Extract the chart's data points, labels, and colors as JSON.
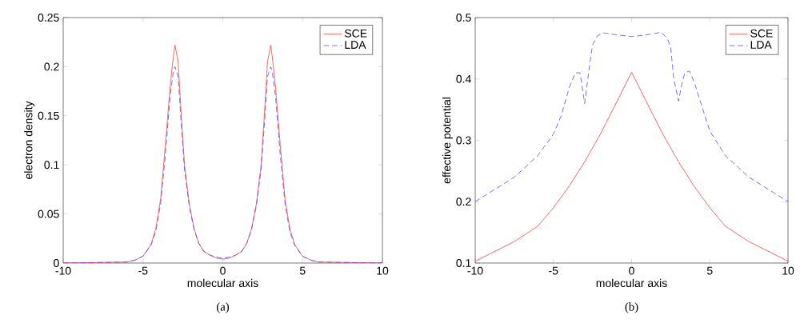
{
  "chart_data": [
    {
      "type": "line",
      "xlabel": "molecular axis",
      "ylabel": "electron density",
      "annotations": [
        "(a)"
      ],
      "xlim": [
        -10,
        10
      ],
      "ylim": [
        0,
        0.25
      ],
      "xticks": [
        -10,
        -5,
        0,
        5,
        10
      ],
      "yticks": [
        0,
        0.05,
        0.1,
        0.15,
        0.2,
        0.25
      ],
      "grid": false,
      "legend": "top right",
      "marker": "none",
      "series": [
        {
          "name": "SCE",
          "color": "#ff4040",
          "line_style": "solid",
          "x": [
            -10,
            -6,
            -5.5,
            -5,
            -4.5,
            -4.2,
            -3.9,
            -3.6,
            -3.3,
            -3.1,
            -3,
            -2.8,
            -2.6,
            -2.4,
            -2.1,
            -1.8,
            -1.5,
            -1.2,
            -0.8,
            -0.4,
            0,
            0.4,
            0.8,
            1.2,
            1.5,
            1.8,
            2.1,
            2.4,
            2.6,
            2.8,
            3,
            3.1,
            3.3,
            3.6,
            3.9,
            4.2,
            4.5,
            5,
            5.5,
            6,
            10
          ],
          "values": [
            0,
            0.001,
            0.003,
            0.007,
            0.019,
            0.035,
            0.065,
            0.12,
            0.18,
            0.21,
            0.222,
            0.205,
            0.15,
            0.1,
            0.06,
            0.035,
            0.02,
            0.012,
            0.008,
            0.005,
            0.004,
            0.005,
            0.008,
            0.012,
            0.02,
            0.035,
            0.06,
            0.1,
            0.15,
            0.205,
            0.222,
            0.21,
            0.18,
            0.12,
            0.065,
            0.035,
            0.019,
            0.007,
            0.003,
            0.001,
            0
          ]
        },
        {
          "name": "LDA",
          "color": "#4d4dff",
          "line_style": "dashed",
          "x": [
            -10,
            -6,
            -5.5,
            -5,
            -4.5,
            -4.2,
            -3.9,
            -3.6,
            -3.3,
            -3.1,
            -3,
            -2.8,
            -2.6,
            -2.4,
            -2.1,
            -1.8,
            -1.5,
            -1.2,
            -0.8,
            -0.4,
            0,
            0.4,
            0.8,
            1.2,
            1.5,
            1.8,
            2.1,
            2.4,
            2.6,
            2.8,
            3,
            3.1,
            3.3,
            3.6,
            3.9,
            4.2,
            4.5,
            5,
            5.5,
            6,
            10
          ],
          "values": [
            0,
            0.001,
            0.003,
            0.007,
            0.018,
            0.032,
            0.06,
            0.11,
            0.17,
            0.195,
            0.2,
            0.19,
            0.14,
            0.095,
            0.058,
            0.034,
            0.02,
            0.012,
            0.008,
            0.006,
            0.005,
            0.006,
            0.008,
            0.012,
            0.02,
            0.034,
            0.058,
            0.095,
            0.14,
            0.19,
            0.2,
            0.195,
            0.17,
            0.11,
            0.06,
            0.032,
            0.018,
            0.007,
            0.003,
            0.001,
            0
          ]
        }
      ]
    },
    {
      "type": "line",
      "xlabel": "molecular axis",
      "ylabel": "effective potential",
      "annotations": [
        "(b)"
      ],
      "xlim": [
        -10,
        10
      ],
      "ylim": [
        0.1,
        0.5
      ],
      "xticks": [
        -10,
        -5,
        0,
        5,
        10
      ],
      "yticks": [
        0.1,
        0.2,
        0.3,
        0.4,
        0.5
      ],
      "grid": false,
      "legend": "top right",
      "marker": "none",
      "series": [
        {
          "name": "SCE",
          "color": "#ff4040",
          "line_style": "solid",
          "x": [
            -10,
            -7.5,
            -6,
            -5,
            -4,
            -3,
            -2,
            -1,
            0,
            1,
            2,
            3,
            4,
            5,
            6,
            7.5,
            10
          ],
          "values": [
            0.103,
            0.135,
            0.16,
            0.19,
            0.225,
            0.265,
            0.31,
            0.36,
            0.411,
            0.36,
            0.31,
            0.265,
            0.225,
            0.19,
            0.16,
            0.135,
            0.103
          ]
        },
        {
          "name": "LDA",
          "color": "#4d4dff",
          "line_style": "dashed",
          "x": [
            -10,
            -7.5,
            -6,
            -5,
            -4.5,
            -4,
            -3.6,
            -3.3,
            -3,
            -2.7,
            -2.5,
            -2.2,
            -1.8,
            -1,
            0,
            1,
            1.9,
            2.3,
            2.5,
            2.7,
            3,
            3.2,
            3.4,
            3.7,
            4,
            5,
            6,
            7.5,
            10
          ],
          "values": [
            0.2,
            0.24,
            0.275,
            0.31,
            0.34,
            0.385,
            0.41,
            0.41,
            0.36,
            0.42,
            0.455,
            0.47,
            0.475,
            0.472,
            0.469,
            0.472,
            0.476,
            0.465,
            0.451,
            0.4,
            0.364,
            0.39,
            0.41,
            0.413,
            0.395,
            0.315,
            0.275,
            0.24,
            0.2
          ]
        }
      ]
    }
  ]
}
